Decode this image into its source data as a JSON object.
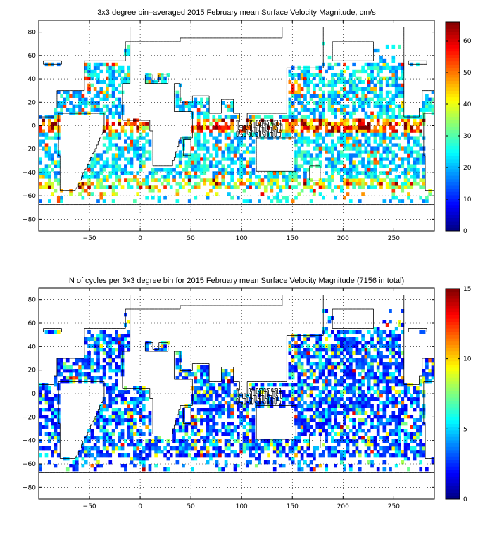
{
  "chart_data": [
    {
      "type": "heatmap",
      "title": "3x3 degree bin–averaged 2015 February mean Surface Velocity Magnitude, cm/s",
      "xlim": [
        -100,
        290
      ],
      "ylim": [
        -90,
        90
      ],
      "x_ticks": [
        -50,
        0,
        50,
        100,
        150,
        200,
        250
      ],
      "y_ticks": [
        -80,
        -60,
        -40,
        -20,
        0,
        20,
        40,
        60,
        80
      ],
      "colorbar": {
        "range": [
          0,
          66
        ],
        "ticks": [
          0,
          10,
          20,
          30,
          40,
          50,
          60
        ]
      },
      "colormap": "jet",
      "bin_size_deg": 3,
      "grid": true
    },
    {
      "type": "heatmap",
      "title": "N of cycles per 3x3 degree bin for 2015 February mean Surface Velocity Magnitude (7156 in total)",
      "xlim": [
        -100,
        290
      ],
      "ylim": [
        -90,
        90
      ],
      "x_ticks": [
        -50,
        0,
        50,
        100,
        150,
        200,
        250
      ],
      "y_ticks": [
        -80,
        -60,
        -40,
        -20,
        0,
        20,
        40,
        60,
        80
      ],
      "colorbar": {
        "range": [
          0,
          15
        ],
        "ticks": [
          0,
          5,
          10,
          15
        ]
      },
      "colormap": "jet",
      "bin_size_deg": 3,
      "grid": true
    }
  ],
  "colors": {
    "jet_low": "#00008f",
    "jet_mid": "#80ff80",
    "jet_high": "#800000",
    "frame": "#000000"
  }
}
